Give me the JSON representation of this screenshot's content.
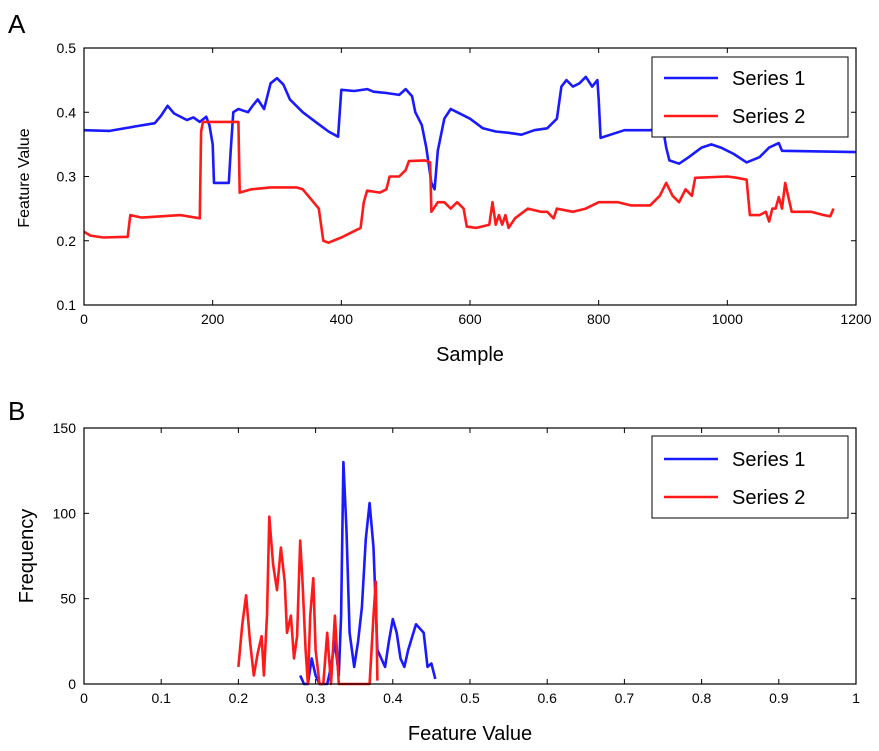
{
  "chart_data": [
    {
      "panel_label": "A",
      "type": "line",
      "xlabel": "Sample",
      "ylabel": "Feature Value",
      "xlim": [
        0,
        1200
      ],
      "ylim": [
        0.1,
        0.5
      ],
      "xticks": [
        0,
        200,
        400,
        600,
        800,
        1000,
        1200
      ],
      "yticks": [
        0.1,
        0.2,
        0.3,
        0.4,
        0.5
      ],
      "legend_position": "top-right",
      "series": [
        {
          "name": "Series 1",
          "color": "#1a1aff",
          "points": [
            [
              0,
              0.372
            ],
            [
              40,
              0.371
            ],
            [
              80,
              0.378
            ],
            [
              110,
              0.383
            ],
            [
              120,
              0.395
            ],
            [
              130,
              0.41
            ],
            [
              140,
              0.398
            ],
            [
              160,
              0.388
            ],
            [
              170,
              0.392
            ],
            [
              180,
              0.385
            ],
            [
              190,
              0.393
            ],
            [
              195,
              0.38
            ],
            [
              200,
              0.35
            ],
            [
              202,
              0.29
            ],
            [
              210,
              0.29
            ],
            [
              225,
              0.29
            ],
            [
              228,
              0.34
            ],
            [
              232,
              0.4
            ],
            [
              240,
              0.405
            ],
            [
              255,
              0.4
            ],
            [
              262,
              0.41
            ],
            [
              270,
              0.42
            ],
            [
              280,
              0.405
            ],
            [
              290,
              0.445
            ],
            [
              300,
              0.453
            ],
            [
              310,
              0.443
            ],
            [
              320,
              0.42
            ],
            [
              340,
              0.4
            ],
            [
              360,
              0.385
            ],
            [
              380,
              0.37
            ],
            [
              395,
              0.362
            ],
            [
              400,
              0.435
            ],
            [
              420,
              0.433
            ],
            [
              440,
              0.436
            ],
            [
              450,
              0.432
            ],
            [
              470,
              0.43
            ],
            [
              490,
              0.427
            ],
            [
              500,
              0.436
            ],
            [
              510,
              0.425
            ],
            [
              515,
              0.4
            ],
            [
              525,
              0.38
            ],
            [
              532,
              0.345
            ],
            [
              540,
              0.29
            ],
            [
              545,
              0.28
            ],
            [
              550,
              0.34
            ],
            [
              560,
              0.39
            ],
            [
              570,
              0.405
            ],
            [
              580,
              0.4
            ],
            [
              600,
              0.39
            ],
            [
              620,
              0.375
            ],
            [
              640,
              0.37
            ],
            [
              660,
              0.368
            ],
            [
              680,
              0.365
            ],
            [
              700,
              0.372
            ],
            [
              720,
              0.375
            ],
            [
              735,
              0.39
            ],
            [
              742,
              0.44
            ],
            [
              750,
              0.45
            ],
            [
              760,
              0.44
            ],
            [
              770,
              0.445
            ],
            [
              780,
              0.455
            ],
            [
              790,
              0.44
            ],
            [
              798,
              0.45
            ],
            [
              800,
              0.42
            ],
            [
              803,
              0.36
            ],
            [
              840,
              0.372
            ],
            [
              880,
              0.372
            ],
            [
              900,
              0.375
            ],
            [
              905,
              0.345
            ],
            [
              910,
              0.325
            ],
            [
              925,
              0.32
            ],
            [
              940,
              0.33
            ],
            [
              960,
              0.345
            ],
            [
              975,
              0.35
            ],
            [
              990,
              0.345
            ],
            [
              1010,
              0.335
            ],
            [
              1030,
              0.322
            ],
            [
              1050,
              0.33
            ],
            [
              1065,
              0.345
            ],
            [
              1080,
              0.352
            ],
            [
              1085,
              0.34
            ],
            [
              1200,
              0.338
            ]
          ]
        },
        {
          "name": "Series 2",
          "color": "#ff1a1a",
          "points": [
            [
              0,
              0.214
            ],
            [
              10,
              0.208
            ],
            [
              30,
              0.205
            ],
            [
              60,
              0.206
            ],
            [
              68,
              0.206
            ],
            [
              72,
              0.24
            ],
            [
              90,
              0.236
            ],
            [
              120,
              0.238
            ],
            [
              150,
              0.24
            ],
            [
              180,
              0.235
            ],
            [
              182,
              0.37
            ],
            [
              185,
              0.385
            ],
            [
              230,
              0.385
            ],
            [
              240,
              0.385
            ],
            [
              242,
              0.275
            ],
            [
              260,
              0.28
            ],
            [
              290,
              0.283
            ],
            [
              330,
              0.283
            ],
            [
              340,
              0.28
            ],
            [
              350,
              0.268
            ],
            [
              365,
              0.25
            ],
            [
              372,
              0.2
            ],
            [
              380,
              0.197
            ],
            [
              400,
              0.205
            ],
            [
              410,
              0.21
            ],
            [
              420,
              0.215
            ],
            [
              430,
              0.22
            ],
            [
              435,
              0.26
            ],
            [
              440,
              0.278
            ],
            [
              460,
              0.275
            ],
            [
              470,
              0.28
            ],
            [
              475,
              0.3
            ],
            [
              490,
              0.3
            ],
            [
              500,
              0.31
            ],
            [
              505,
              0.324
            ],
            [
              530,
              0.325
            ],
            [
              538,
              0.322
            ],
            [
              540,
              0.245
            ],
            [
              550,
              0.26
            ],
            [
              560,
              0.26
            ],
            [
              570,
              0.25
            ],
            [
              580,
              0.26
            ],
            [
              590,
              0.25
            ],
            [
              595,
              0.222
            ],
            [
              610,
              0.22
            ],
            [
              630,
              0.225
            ],
            [
              635,
              0.26
            ],
            [
              640,
              0.225
            ],
            [
              645,
              0.24
            ],
            [
              650,
              0.225
            ],
            [
              655,
              0.24
            ],
            [
              660,
              0.22
            ],
            [
              670,
              0.235
            ],
            [
              690,
              0.25
            ],
            [
              710,
              0.245
            ],
            [
              720,
              0.245
            ],
            [
              730,
              0.235
            ],
            [
              735,
              0.25
            ],
            [
              760,
              0.245
            ],
            [
              780,
              0.25
            ],
            [
              800,
              0.26
            ],
            [
              830,
              0.26
            ],
            [
              850,
              0.255
            ],
            [
              870,
              0.255
            ],
            [
              880,
              0.255
            ],
            [
              895,
              0.27
            ],
            [
              905,
              0.29
            ],
            [
              915,
              0.27
            ],
            [
              925,
              0.26
            ],
            [
              935,
              0.28
            ],
            [
              945,
              0.27
            ],
            [
              950,
              0.298
            ],
            [
              1000,
              0.3
            ],
            [
              1015,
              0.298
            ],
            [
              1030,
              0.295
            ],
            [
              1035,
              0.24
            ],
            [
              1050,
              0.24
            ],
            [
              1060,
              0.245
            ],
            [
              1065,
              0.23
            ],
            [
              1070,
              0.25
            ],
            [
              1075,
              0.25
            ],
            [
              1080,
              0.268
            ],
            [
              1085,
              0.25
            ],
            [
              1090,
              0.29
            ],
            [
              1100,
              0.245
            ],
            [
              1130,
              0.245
            ],
            [
              1150,
              0.24
            ],
            [
              1160,
              0.238
            ],
            [
              1165,
              0.25
            ]
          ]
        }
      ]
    },
    {
      "panel_label": "B",
      "type": "line",
      "xlabel": "Feature Value",
      "ylabel": "Frequency",
      "xlim": [
        0,
        1
      ],
      "ylim": [
        0,
        150
      ],
      "xticks": [
        0,
        0.1,
        0.2,
        0.3,
        0.4,
        0.5,
        0.6,
        0.7,
        0.8,
        0.9,
        1
      ],
      "yticks": [
        0,
        50,
        100,
        150
      ],
      "legend_position": "top-right",
      "series": [
        {
          "name": "Series 1",
          "color": "#1a1aff",
          "points": [
            [
              0.28,
              5
            ],
            [
              0.285,
              0
            ],
            [
              0.29,
              0
            ],
            [
              0.295,
              15
            ],
            [
              0.3,
              5
            ],
            [
              0.305,
              0
            ],
            [
              0.315,
              0
            ],
            [
              0.32,
              10
            ],
            [
              0.325,
              25
            ],
            [
              0.33,
              5
            ],
            [
              0.333,
              40
            ],
            [
              0.336,
              130
            ],
            [
              0.34,
              90
            ],
            [
              0.344,
              30
            ],
            [
              0.35,
              10
            ],
            [
              0.355,
              25
            ],
            [
              0.36,
              45
            ],
            [
              0.365,
              85
            ],
            [
              0.37,
              106
            ],
            [
              0.375,
              80
            ],
            [
              0.38,
              20
            ],
            [
              0.385,
              15
            ],
            [
              0.39,
              10
            ],
            [
              0.395,
              25
            ],
            [
              0.4,
              38
            ],
            [
              0.405,
              30
            ],
            [
              0.41,
              15
            ],
            [
              0.415,
              10
            ],
            [
              0.42,
              20
            ],
            [
              0.43,
              35
            ],
            [
              0.44,
              30
            ],
            [
              0.445,
              10
            ],
            [
              0.45,
              12
            ],
            [
              0.455,
              3
            ]
          ]
        },
        {
          "name": "Series 2",
          "color": "#ff1a1a",
          "points": [
            [
              0.2,
              10
            ],
            [
              0.205,
              35
            ],
            [
              0.21,
              52
            ],
            [
              0.215,
              25
            ],
            [
              0.22,
              5
            ],
            [
              0.225,
              18
            ],
            [
              0.23,
              28
            ],
            [
              0.233,
              5
            ],
            [
              0.237,
              40
            ],
            [
              0.24,
              98
            ],
            [
              0.245,
              70
            ],
            [
              0.25,
              55
            ],
            [
              0.255,
              80
            ],
            [
              0.26,
              60
            ],
            [
              0.263,
              30
            ],
            [
              0.268,
              40
            ],
            [
              0.272,
              15
            ],
            [
              0.276,
              28
            ],
            [
              0.28,
              84
            ],
            [
              0.283,
              60
            ],
            [
              0.287,
              20
            ],
            [
              0.29,
              0
            ],
            [
              0.293,
              40
            ],
            [
              0.297,
              62
            ],
            [
              0.3,
              20
            ],
            [
              0.305,
              0
            ],
            [
              0.31,
              0
            ],
            [
              0.315,
              30
            ],
            [
              0.32,
              0
            ],
            [
              0.325,
              40
            ],
            [
              0.33,
              0
            ],
            [
              0.37,
              0
            ],
            [
              0.375,
              40
            ],
            [
              0.378,
              60
            ],
            [
              0.38,
              2
            ]
          ]
        }
      ]
    }
  ]
}
